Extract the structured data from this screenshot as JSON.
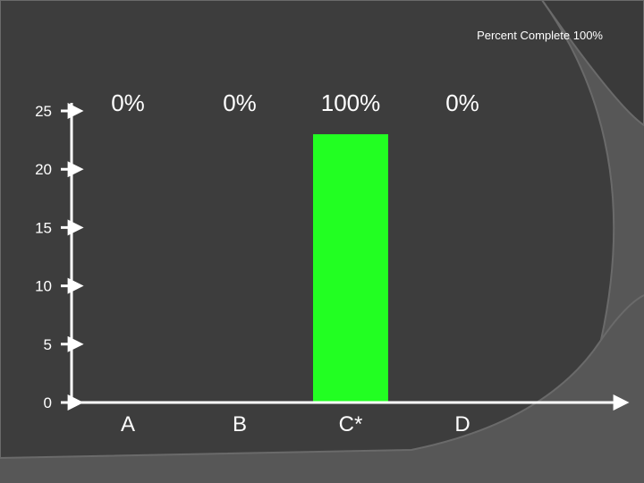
{
  "header": {
    "percent_complete": "Percent Complete 100%"
  },
  "colors": {
    "bar": "#22ff22",
    "axis": "#ffffff",
    "text": "#ffffff"
  },
  "chart_data": {
    "type": "bar",
    "categories": [
      "A",
      "B",
      "C*",
      "D"
    ],
    "values": [
      0,
      0,
      23,
      0
    ],
    "value_labels": [
      "0%",
      "0%",
      "100%",
      "0%"
    ],
    "yticks": [
      "0",
      "5",
      "10",
      "15",
      "20",
      "25"
    ],
    "ylim": [
      0,
      25
    ],
    "grid": false,
    "legend": "none"
  }
}
